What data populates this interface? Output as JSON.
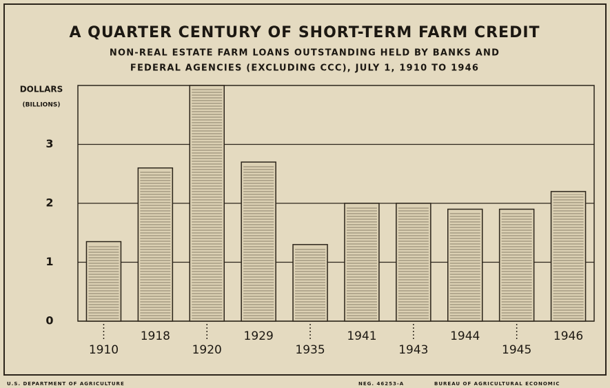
{
  "chart_data": {
    "type": "bar",
    "title": "A QUARTER CENTURY OF SHORT-TERM FARM CREDIT",
    "subtitle": [
      "NON-REAL ESTATE FARM LOANS OUTSTANDING HELD BY BANKS AND",
      "FEDERAL AGENCIES (EXCLUDING CCC), JULY 1, 1910 TO 1946"
    ],
    "y_label": [
      "DOLLARS",
      "(BILLIONS)"
    ],
    "categories": [
      "1910",
      "1918",
      "1920",
      "1929",
      "1935",
      "1941",
      "1943",
      "1944",
      "1945",
      "1946"
    ],
    "values": [
      1.35,
      2.6,
      4.0,
      2.7,
      1.3,
      2.0,
      2.0,
      1.9,
      1.9,
      2.2
    ],
    "color": "#dcd1b4",
    "ylim": [
      0,
      4
    ],
    "yticks": [
      0,
      1,
      2,
      3
    ],
    "grid": true,
    "footer": {
      "left": "U.S. DEPARTMENT OF AGRICULTURE",
      "neg": "NEG. 46253-A",
      "right": "BUREAU OF AGRICULTURAL ECONOMIC"
    }
  }
}
